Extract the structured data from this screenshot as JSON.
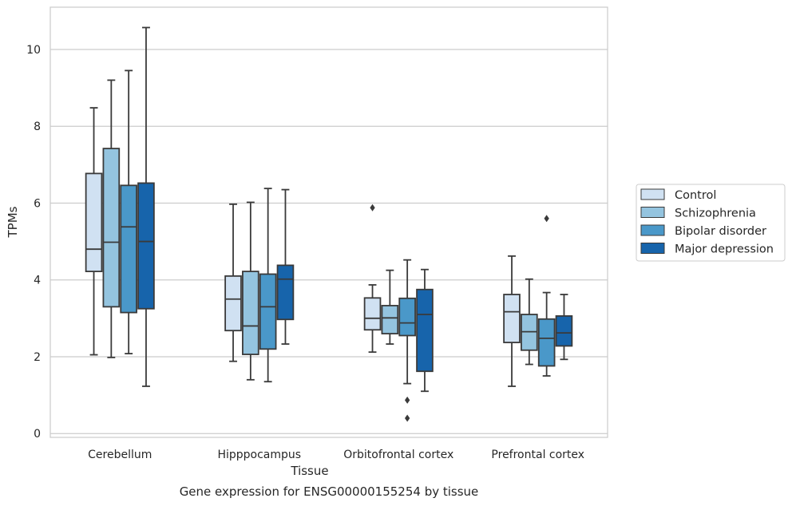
{
  "chart_data": {
    "type": "box",
    "caption": "Gene expression for ENSG00000155254 by tissue",
    "xlabel": "Tissue",
    "ylabel": "TPMs",
    "ylim": [
      -0.1,
      11.1
    ],
    "yticks": [
      0,
      2,
      4,
      6,
      8,
      10
    ],
    "grid": "horizontal",
    "legend_position": "right",
    "categories": [
      "Cerebellum",
      "Hipppocampus",
      "Orbitofrontal cortex",
      "Prefrontal cortex"
    ],
    "series": [
      {
        "name": "Control",
        "color": "#d0e1f2",
        "boxes": [
          {
            "whislo": 2.05,
            "q1": 4.22,
            "med": 4.8,
            "q3": 6.77,
            "whishi": 8.48,
            "fliers": []
          },
          {
            "whislo": 1.88,
            "q1": 2.68,
            "med": 3.5,
            "q3": 4.1,
            "whishi": 5.97,
            "fliers": []
          },
          {
            "whislo": 2.12,
            "q1": 2.7,
            "med": 3.0,
            "q3": 3.53,
            "whishi": 3.87,
            "fliers": [
              5.88
            ]
          },
          {
            "whislo": 1.23,
            "q1": 2.37,
            "med": 3.17,
            "q3": 3.62,
            "whishi": 4.62,
            "fliers": []
          }
        ]
      },
      {
        "name": "Schizophrenia",
        "color": "#94c4df",
        "boxes": [
          {
            "whislo": 1.98,
            "q1": 3.3,
            "med": 4.98,
            "q3": 7.42,
            "whishi": 9.2,
            "fliers": []
          },
          {
            "whislo": 1.4,
            "q1": 2.06,
            "med": 2.8,
            "q3": 4.22,
            "whishi": 6.02,
            "fliers": []
          },
          {
            "whislo": 2.33,
            "q1": 2.6,
            "med": 3.01,
            "q3": 3.33,
            "whishi": 4.25,
            "fliers": []
          },
          {
            "whislo": 1.8,
            "q1": 2.17,
            "med": 2.65,
            "q3": 3.1,
            "whishi": 4.02,
            "fliers": []
          }
        ]
      },
      {
        "name": "Bipolar disorder",
        "color": "#4a98c9",
        "boxes": [
          {
            "whislo": 2.08,
            "q1": 3.15,
            "med": 5.38,
            "q3": 6.46,
            "whishi": 9.45,
            "fliers": []
          },
          {
            "whislo": 1.35,
            "q1": 2.2,
            "med": 3.3,
            "q3": 4.15,
            "whishi": 6.38,
            "fliers": []
          },
          {
            "whislo": 1.3,
            "q1": 2.55,
            "med": 2.88,
            "q3": 3.52,
            "whishi": 4.52,
            "fliers": [
              0.87,
              0.4
            ]
          },
          {
            "whislo": 1.5,
            "q1": 1.76,
            "med": 2.48,
            "q3": 2.98,
            "whishi": 3.67,
            "fliers": [
              5.6
            ]
          }
        ]
      },
      {
        "name": "Major depression",
        "color": "#1764ab",
        "boxes": [
          {
            "whislo": 1.23,
            "q1": 3.25,
            "med": 5.0,
            "q3": 6.52,
            "whishi": 10.57,
            "fliers": []
          },
          {
            "whislo": 2.33,
            "q1": 2.97,
            "med": 4.02,
            "q3": 4.38,
            "whishi": 6.35,
            "fliers": []
          },
          {
            "whislo": 1.1,
            "q1": 1.62,
            "med": 3.1,
            "q3": 3.75,
            "whishi": 4.27,
            "fliers": []
          },
          {
            "whislo": 1.93,
            "q1": 2.28,
            "med": 2.62,
            "q3": 3.06,
            "whishi": 3.62,
            "fliers": []
          }
        ]
      }
    ]
  }
}
